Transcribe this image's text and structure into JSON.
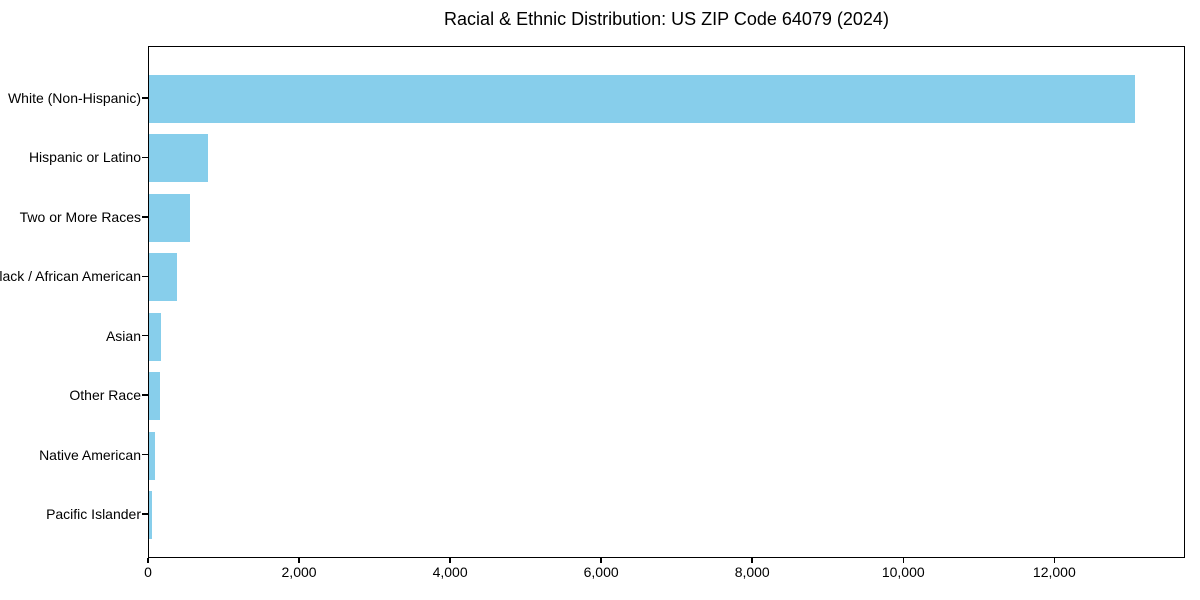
{
  "chart_data": {
    "type": "bar",
    "orientation": "horizontal",
    "title": "Racial & Ethnic Distribution: US ZIP Code 64079 (2024)",
    "categories": [
      "White (Non-Hispanic)",
      "Hispanic or Latino",
      "Two or More Races",
      "Black / African American",
      "Asian",
      "Other Race",
      "Native American",
      "Pacific Islander"
    ],
    "values": [
      13085,
      780,
      550,
      375,
      160,
      145,
      80,
      40
    ],
    "xlabel": "",
    "ylabel": "",
    "xlim": [
      0,
      13730
    ],
    "x_ticks": [
      0,
      2000,
      4000,
      6000,
      8000,
      10000,
      12000
    ],
    "x_tick_labels": [
      "0",
      "2,000",
      "4,000",
      "6,000",
      "8,000",
      "10,000",
      "12,000"
    ],
    "grid": false,
    "legend": null,
    "bar_color": "#87CEEB",
    "axis_color": "#000000",
    "text_color": "#000000",
    "background": "#FFFFFF",
    "sort_order": "descending"
  }
}
